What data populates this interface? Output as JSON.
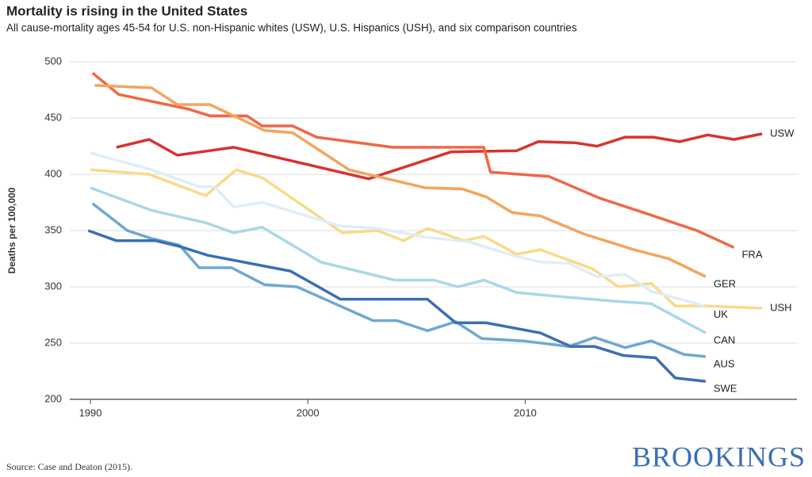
{
  "chart_data": {
    "type": "line",
    "title": "Mortality is rising in the United States",
    "subtitle": "All cause-mortality ages 45-54 for U.S. non-Hispanic whites (USW), U.S. Hispanics (USH), and six comparison countries",
    "y_label": "Deaths per 100,000",
    "source": "Source: Case and Deaton (2015).",
    "logo": "BROOKINGS",
    "xlim": [
      1989.05,
      2022.5
    ],
    "xticks": [
      1990,
      2000,
      2010
    ],
    "ylim": [
      200,
      500
    ],
    "yticks": [
      200,
      250,
      300,
      350,
      400,
      450,
      500
    ],
    "grid": true,
    "series": [
      {
        "name": "USW",
        "color": "#d7332f",
        "x": [
          1991.2,
          1992.7,
          1994,
          1996.6,
          2002.8,
          2006.6,
          2009.6,
          2010.6,
          2012.3,
          2013.3,
          2014.6,
          2015.9,
          2017.1,
          2018.4,
          2019.6,
          2020.9
        ],
        "values": [
          424,
          431,
          417,
          424,
          396,
          420,
          421,
          429,
          428,
          425,
          433,
          433,
          429,
          435,
          431,
          436
        ]
      },
      {
        "name": "FRA",
        "color": "#ef6745",
        "x": [
          1990.1,
          1991.3,
          1994.5,
          1995.5,
          1997.2,
          1997.9,
          1999.3,
          2000.4,
          2003.9,
          2008.1,
          2008.4,
          2011.1,
          2013.4,
          2015.6,
          2017.9,
          2019.6
        ],
        "values": [
          490,
          471,
          458,
          452,
          452,
          443,
          443,
          433,
          424,
          424,
          402,
          398,
          379,
          365,
          350,
          335
        ]
      },
      {
        "name": "GER",
        "color": "#f5a45d",
        "x": [
          1990.2,
          1992.8,
          1994,
          1995.5,
          1998,
          1999.3,
          2001.9,
          2005.4,
          2007.1,
          2008.2,
          2009.4,
          2010.7,
          2012.7,
          2015,
          2016.6,
          2018.3
        ],
        "values": [
          479,
          477,
          462,
          462,
          439,
          437,
          404,
          388,
          387,
          380,
          366,
          363,
          347,
          333,
          325,
          309
        ]
      },
      {
        "name": "USH",
        "color": "#fbd98a",
        "x": [
          1990,
          1992.7,
          1995.3,
          1996.7,
          1997.9,
          2001.6,
          2003.2,
          2004.4,
          2005.5,
          2007.2,
          2008.1,
          2009.6,
          2010.7,
          2013.1,
          2014.3,
          2015.8,
          2016.9,
          2018.3,
          2020.9
        ],
        "values": [
          404,
          400,
          381,
          404,
          397,
          348,
          350,
          341,
          352,
          341,
          345,
          329,
          333,
          316,
          300,
          303,
          283,
          283,
          281
        ]
      },
      {
        "name": "UK",
        "color": "#deedf7",
        "x": [
          1990,
          1992.8,
          1995,
          1995.7,
          1996.6,
          1997.9,
          2001.5,
          2003.2,
          2005.5,
          2007.4,
          2009.6,
          2010.7,
          2012,
          2013.3,
          2014.6,
          2015.8,
          2017.9,
          2018.3
        ],
        "values": [
          419,
          404,
          389,
          389,
          371,
          375,
          354,
          352,
          344,
          340,
          327,
          322,
          321,
          309,
          311,
          296,
          285,
          282
        ]
      },
      {
        "name": "CAN",
        "color": "#a8d8e8",
        "x": [
          1990,
          1992.8,
          1995.3,
          1996.6,
          1997.9,
          2000.6,
          2004,
          2005.8,
          2006.9,
          2008.1,
          2009.6,
          2011.2,
          2014.3,
          2015.8,
          2018.3
        ],
        "values": [
          388,
          368,
          357,
          348,
          353,
          322,
          306,
          306,
          300,
          306,
          295,
          292,
          287,
          285,
          259
        ]
      },
      {
        "name": "AUS",
        "color": "#6fa8d0",
        "x": [
          1990.1,
          1991.7,
          1992.8,
          1994.1,
          1995,
          1996.5,
          1998,
          1999.5,
          2003,
          2004.1,
          2005.5,
          2006.8,
          2008,
          2009.9,
          2012,
          2013.2,
          2014.6,
          2015.8,
          2017.3,
          2018.3
        ],
        "values": [
          374,
          350,
          343,
          337,
          317,
          317,
          302,
          300,
          270,
          270,
          261,
          269,
          254,
          252,
          247,
          255,
          246,
          252,
          240,
          238
        ]
      },
      {
        "name": "SWE",
        "color": "#3c6eb4",
        "x": [
          1989.9,
          1991.2,
          1993,
          1994.1,
          1995.4,
          1999.2,
          2001.5,
          2005.5,
          2006.8,
          2008.2,
          2010.7,
          2012.1,
          2013.2,
          2014.5,
          2016,
          2016.9,
          2018.3
        ],
        "values": [
          350,
          341,
          341,
          336,
          328,
          314,
          289,
          289,
          268,
          268,
          259,
          247,
          247,
          239,
          237,
          219,
          216
        ]
      }
    ]
  }
}
